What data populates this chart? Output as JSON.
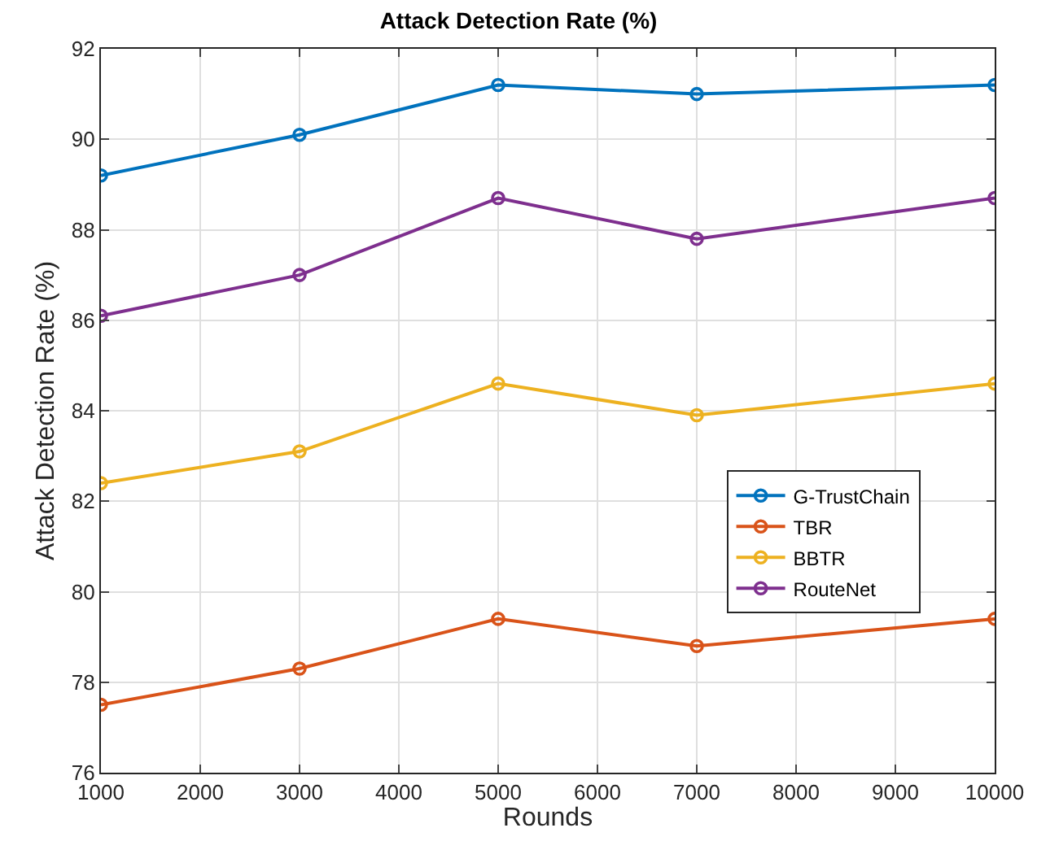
{
  "chart_data": {
    "type": "line",
    "title": "Attack Detection Rate (%)",
    "xlabel": "Rounds",
    "ylabel": "Attack Detection Rate (%)",
    "x": [
      1000,
      3000,
      5000,
      7000,
      10000
    ],
    "series": [
      {
        "name": "G-TrustChain",
        "color": "#0072bd",
        "values": [
          89.2,
          90.1,
          91.2,
          91.0,
          91.2
        ]
      },
      {
        "name": "TBR",
        "color": "#d95319",
        "values": [
          77.5,
          78.3,
          79.4,
          78.8,
          79.4
        ]
      },
      {
        "name": "BBTR",
        "color": "#edb120",
        "values": [
          82.4,
          83.1,
          84.6,
          83.9,
          84.6
        ]
      },
      {
        "name": "RouteNet",
        "color": "#7e2f8e",
        "values": [
          86.1,
          87.0,
          88.7,
          87.8,
          88.7
        ]
      }
    ],
    "xlim": [
      1000,
      10000
    ],
    "xticks": [
      1000,
      2000,
      3000,
      4000,
      5000,
      6000,
      7000,
      8000,
      9000,
      10000
    ],
    "ylim": [
      76,
      92
    ],
    "yticks": [
      76,
      78,
      80,
      82,
      84,
      86,
      88,
      90,
      92
    ],
    "grid": true,
    "legend": "bottom right",
    "marker": "circle",
    "line_style": "solid"
  }
}
